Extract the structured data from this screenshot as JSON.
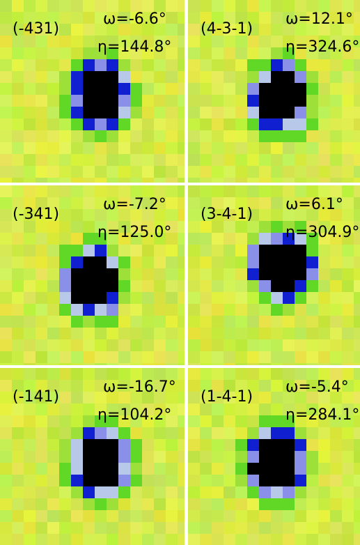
{
  "panels": [
    {
      "label": "(-431)",
      "omega": "ω=-6.6°",
      "eta": "η=144.8°"
    },
    {
      "label": "(4-3-1)",
      "omega": "ω=12.1°",
      "eta": "η=324.6°"
    },
    {
      "label": "(-341)",
      "omega": "ω=-7.2°",
      "eta": "η=125.0°"
    },
    {
      "label": "(3-4-1)",
      "omega": "ω=6.1°",
      "eta": "η=304.9°"
    },
    {
      "label": "(-141)",
      "omega": "ω=-16.7°",
      "eta": "η=104.2°"
    },
    {
      "label": "(1-4-1)",
      "omega": "ω=-5.4°",
      "eta": "η=284.1°"
    }
  ]
}
